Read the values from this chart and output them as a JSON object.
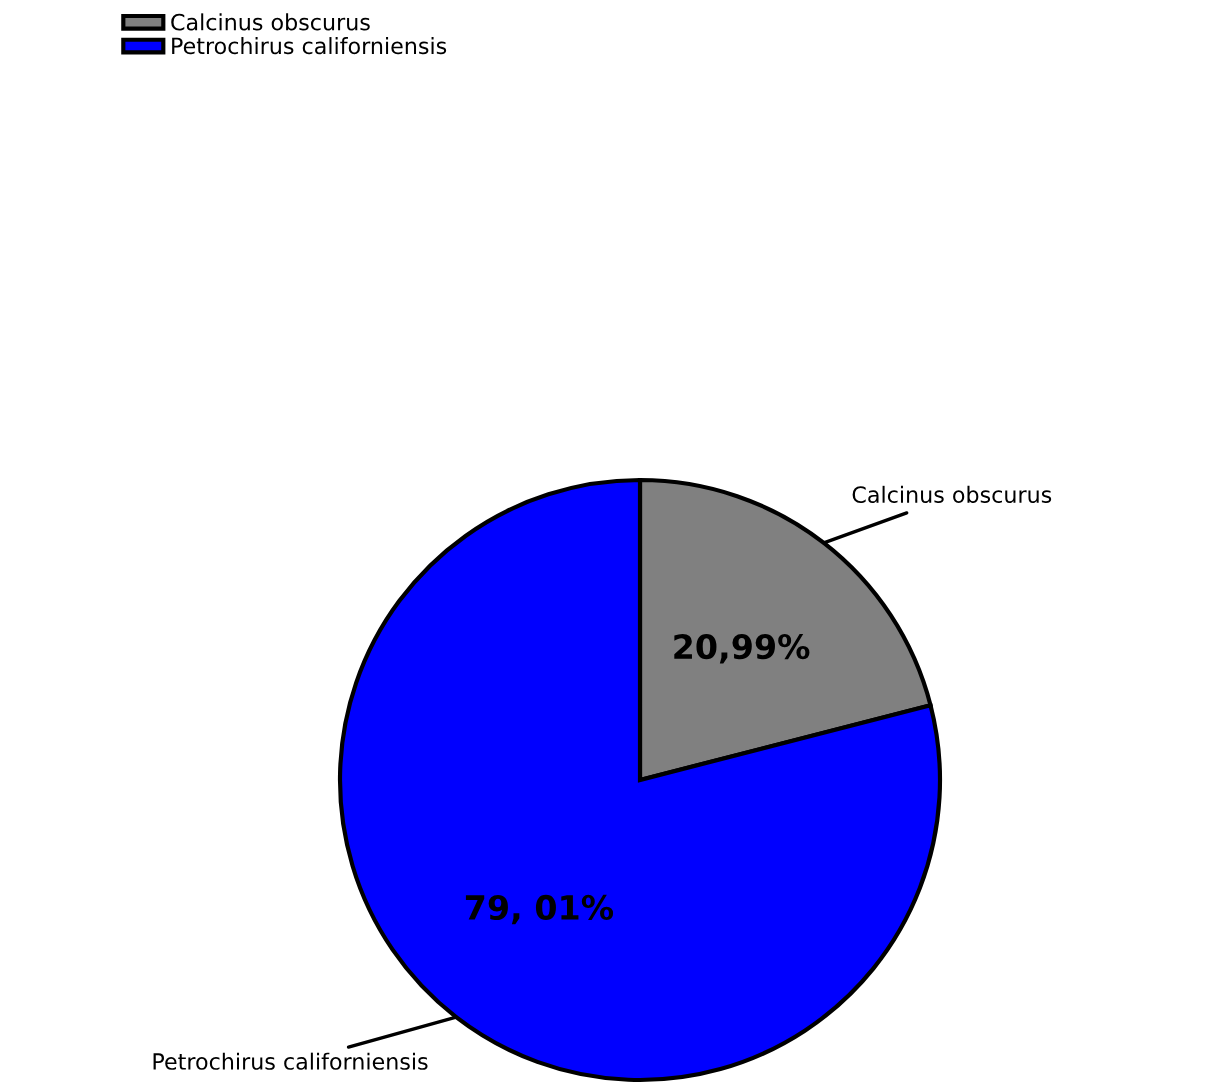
{
  "chart_data": {
    "type": "pie",
    "categories": [
      "Calcinus obscurus",
      "Petrochirus californiensis"
    ],
    "values": [
      20.99,
      79.01
    ],
    "colors": [
      "#808080",
      "#0000ff"
    ],
    "value_labels": [
      "20,99%",
      "79, 01%"
    ],
    "legend": "top left"
  }
}
